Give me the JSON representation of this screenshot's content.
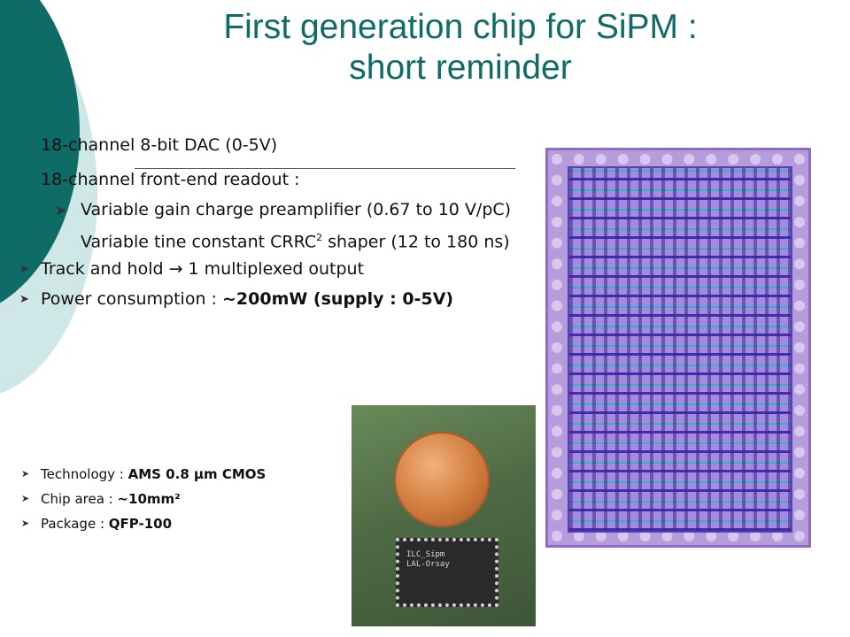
{
  "title": {
    "line1": "First generation chip for SiPM :",
    "line2": "short reminder"
  },
  "bullets": [
    {
      "text": "18-channel 8-bit DAC (0-5V)"
    },
    {
      "text": "18-channel front-end readout :"
    },
    {
      "text": "Variable gain charge preamplifier (0.67 to 10 V/pC)"
    },
    {
      "text_pre": "Variable tine constant CRRC",
      "sup": "2",
      "text_post": " shaper (12 to 180 ns)"
    },
    {
      "text": "Track and hold → 1 multiplexed output"
    },
    {
      "text_pre": "Power consumption : ",
      "bold": "~200mW (supply : 0-5V)"
    }
  ],
  "specs": [
    {
      "label": "Technology : ",
      "value": "AMS 0.8 μm CMOS"
    },
    {
      "label": "Chip area : ",
      "value": "~10mm²"
    },
    {
      "label": "Package : ",
      "value": "QFP-100"
    }
  ],
  "photo": {
    "chip_marking": [
      "ILC_Sipm",
      "LAL-Orsay"
    ]
  },
  "colors": {
    "accent": "#0f6b66",
    "accent_light": "#cfe7e6"
  },
  "icons": {
    "bullet": "arrowhead-bullet-icon"
  }
}
